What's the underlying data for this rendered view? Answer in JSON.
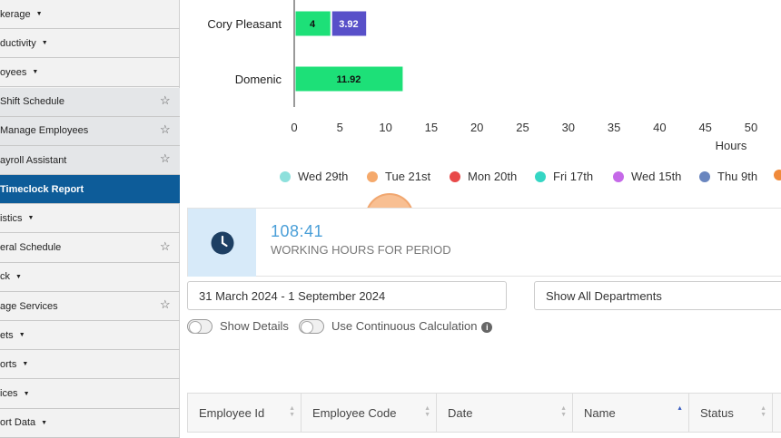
{
  "sidebar": {
    "items": [
      {
        "label": "kerage",
        "caret": true,
        "star": false,
        "style": "normal"
      },
      {
        "label": "ductivity",
        "caret": true,
        "star": false,
        "style": "normal"
      },
      {
        "label": "oyees",
        "caret": true,
        "star": false,
        "style": "normal"
      },
      {
        "label": "Shift Schedule",
        "caret": false,
        "star": true,
        "style": "sub"
      },
      {
        "label": "Manage Employees",
        "caret": false,
        "star": true,
        "style": "sub"
      },
      {
        "label": "ayroll Assistant",
        "caret": false,
        "star": true,
        "style": "sub"
      },
      {
        "label": "Timeclock Report",
        "caret": false,
        "star": false,
        "style": "active"
      },
      {
        "label": "istics",
        "caret": true,
        "star": false,
        "style": "normal"
      },
      {
        "label": "eral Schedule",
        "caret": false,
        "star": true,
        "style": "normal"
      },
      {
        "label": "ck",
        "caret": true,
        "star": false,
        "style": "normal"
      },
      {
        "label": "age Services",
        "caret": false,
        "star": true,
        "style": "normal"
      },
      {
        "label": "ets",
        "caret": true,
        "star": false,
        "style": "normal"
      },
      {
        "label": "orts",
        "caret": true,
        "star": false,
        "style": "normal"
      },
      {
        "label": "ices",
        "caret": true,
        "star": false,
        "style": "normal"
      },
      {
        "label": "ort Data",
        "caret": true,
        "star": false,
        "style": "normal"
      }
    ]
  },
  "chart_data": {
    "type": "bar",
    "orientation": "horizontal",
    "stacked": true,
    "categories": [
      "Cory Pleasant",
      "Domenic"
    ],
    "series": [
      {
        "name": "Fri 17th",
        "color": "#1de078",
        "values": [
          4,
          11.92
        ]
      },
      {
        "name": "Wed 15th",
        "color": "#5850c9",
        "values": [
          3.92,
          0
        ]
      }
    ],
    "xlabel": "Hours",
    "xlim": [
      0,
      50
    ],
    "xticks": [
      0,
      5,
      10,
      15,
      20,
      25,
      30,
      35,
      40,
      45,
      50
    ],
    "legend": [
      {
        "name": "Wed 29th",
        "color": "#8de0dc"
      },
      {
        "name": "Tue 21st",
        "color": "#f5a96b"
      },
      {
        "name": "Mon 20th",
        "color": "#e84a4a"
      },
      {
        "name": "Fri 17th",
        "color": "#35d6c4"
      },
      {
        "name": "Wed 15th",
        "color": "#c569e8"
      },
      {
        "name": "Thu 9th",
        "color": "#6a86bf"
      },
      {
        "name": "",
        "color": "#f08a3a"
      }
    ]
  },
  "summary": {
    "hours_value": "108:41",
    "hours_label": "WORKING HOURS FOR PERIOD"
  },
  "filters": {
    "date_range": "31 March 2024 - 1 September 2024",
    "department": "Show All Departments"
  },
  "toggles": {
    "show_details": "Show Details",
    "continuous_calc": "Use Continuous Calculation"
  },
  "table": {
    "columns": [
      "Employee Id",
      "Employee Code",
      "Date",
      "Name",
      "Status"
    ]
  }
}
